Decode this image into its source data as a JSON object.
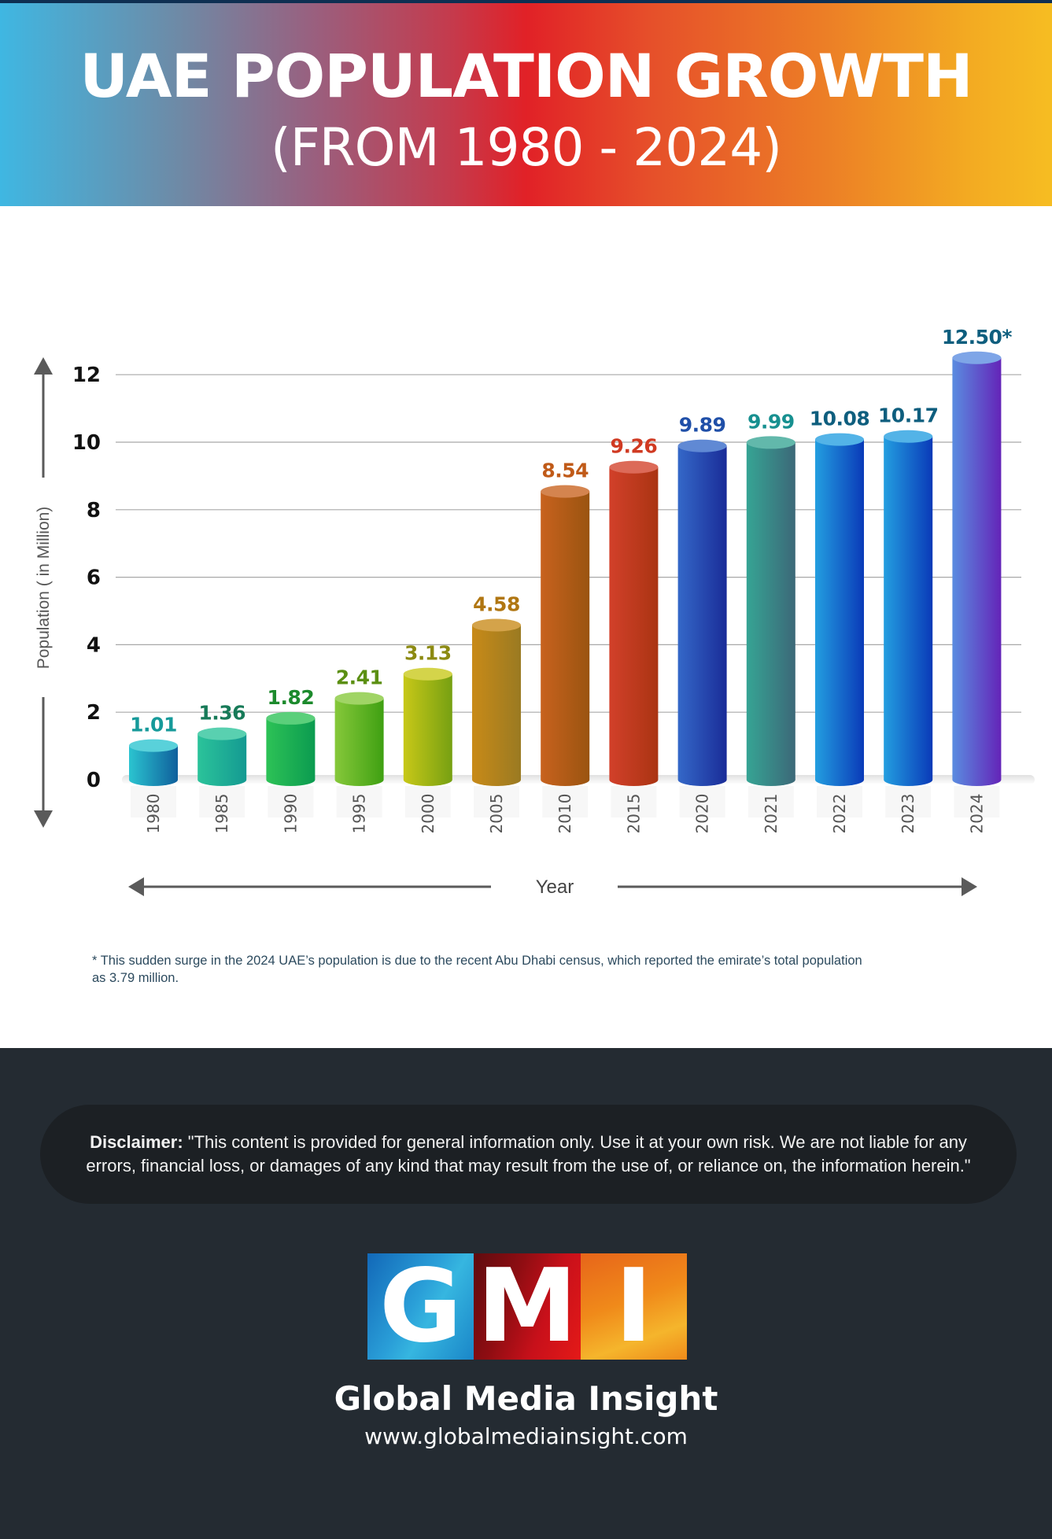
{
  "header": {
    "title": "UAE POPULATION GROWTH",
    "subtitle": "(FROM 1980 - 2024)"
  },
  "chart_data": {
    "type": "bar",
    "title": "UAE POPULATION GROWTH (FROM 1980 - 2024)",
    "xlabel": "Year",
    "ylabel": "Population ( in Million)",
    "ylim": [
      0,
      12.5
    ],
    "yticks": [
      0,
      2,
      4,
      6,
      8,
      10,
      12
    ],
    "grid": true,
    "legend": "none",
    "categories": [
      "1980",
      "1985",
      "1990",
      "1995",
      "2000",
      "2005",
      "2010",
      "2015",
      "2020",
      "2021",
      "2022",
      "2023",
      "2024"
    ],
    "values": [
      1.01,
      1.36,
      1.82,
      2.41,
      3.13,
      4.58,
      8.54,
      9.26,
      9.89,
      9.99,
      10.08,
      10.17,
      12.5
    ],
    "data_labels": [
      "1.01",
      "1.36",
      "1.82",
      "2.41",
      "3.13",
      "4.58",
      "8.54",
      "9.26",
      "9.89",
      "9.99",
      "10.08",
      "10.17",
      "12.50*"
    ],
    "bar_colors": [
      [
        "#2bc4d0",
        "#0f5f9c"
      ],
      [
        "#2bc39a",
        "#149a92"
      ],
      [
        "#2dc256",
        "#0b9b50"
      ],
      [
        "#86c83a",
        "#3fa012"
      ],
      [
        "#c8c818",
        "#76a012"
      ],
      [
        "#c88a18",
        "#9a7a22"
      ],
      [
        "#c8621e",
        "#9a5410"
      ],
      [
        "#d2402a",
        "#aa3412"
      ],
      [
        "#3468c8",
        "#1a2c98"
      ],
      [
        "#36a494",
        "#3c6878"
      ],
      [
        "#239ee0",
        "#0a3ab8"
      ],
      [
        "#239ee0",
        "#0a3ab8"
      ],
      [
        "#5a8ce0",
        "#6424b8"
      ]
    ],
    "label_colors": [
      "#169a9a",
      "#177a58",
      "#1c8a2c",
      "#5b8f12",
      "#8c8a12",
      "#b07612",
      "#c05a18",
      "#d03a22",
      "#1f4fa8",
      "#179090",
      "#0e5e7e",
      "#0e5e7e",
      "#0e5e7e"
    ],
    "annotations": [
      "* This sudden surge in the 2024 UAE's population is due to the recent Abu Dhabi census, which reported the emirate's total population as 3.79 million."
    ]
  },
  "footnote": "* This sudden surge in the 2024 UAE’s population is due to the recent Abu Dhabi census, which reported the emirate’s total population as 3.79 million.",
  "disclaimer": {
    "label": "Disclaimer:",
    "text": " \"This content is provided for general information only. Use it at your own risk. We are not liable for any errors, financial loss, or damages of any kind that may result from the use of, or reliance on, the information herein.\""
  },
  "brand": {
    "logo_letters": [
      "G",
      "M",
      "I"
    ],
    "name": "Global Media Insight",
    "url": "www.globalmediainsight.com"
  },
  "colors": {
    "axis": "#5a5a5a",
    "grid": "#a8a8a8",
    "footer_bg": "#242b32"
  }
}
